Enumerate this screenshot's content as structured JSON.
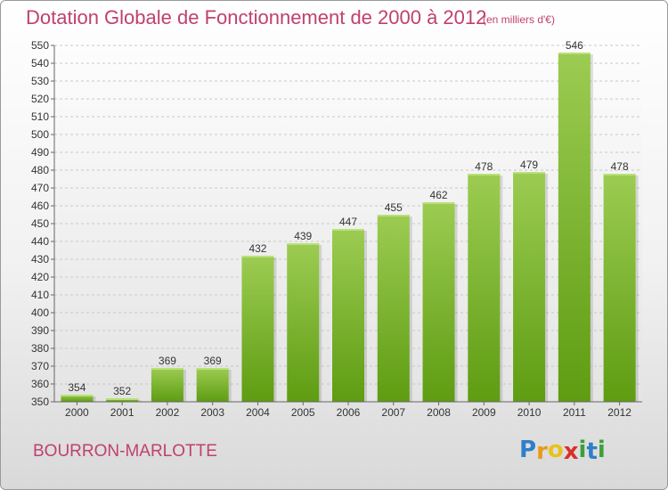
{
  "title": "Dotation Globale de Fonctionnement de 2000 à 2012",
  "unit_note": "(en milliers d'€)",
  "commune": "BOURRON-MARLOTTE",
  "logo": {
    "letters": [
      "P",
      "r",
      "o",
      "x",
      "i",
      "t",
      "i"
    ],
    "colors": [
      "#2f7fc8",
      "#e89a1b",
      "#e8c21b",
      "#d9302a",
      "#3aa03a",
      "#2f7fc8",
      "#3aa03a"
    ]
  },
  "colors": {
    "text_accent": "#c04070",
    "bar_top": "#9ccc52",
    "bar_bottom": "#5e9c12"
  },
  "chart_data": {
    "type": "bar",
    "categories": [
      "2000",
      "2001",
      "2002",
      "2003",
      "2004",
      "2005",
      "2006",
      "2007",
      "2008",
      "2009",
      "2010",
      "2011",
      "2012"
    ],
    "values": [
      354,
      352,
      369,
      369,
      432,
      439,
      447,
      455,
      462,
      478,
      479,
      546,
      478
    ],
    "ylim": [
      350,
      550
    ],
    "yticks": [
      350,
      360,
      370,
      380,
      390,
      400,
      410,
      420,
      430,
      440,
      450,
      460,
      470,
      480,
      490,
      500,
      510,
      520,
      530,
      540,
      550
    ],
    "grid": true,
    "data_labels": true
  }
}
